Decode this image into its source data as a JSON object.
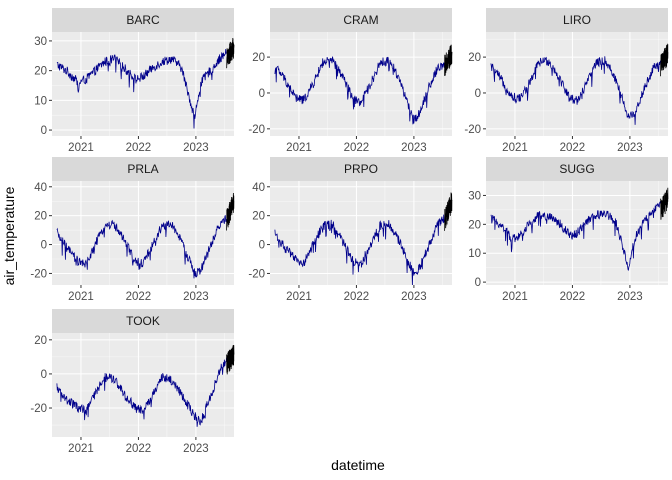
{
  "chart_data": {
    "type": "line",
    "layout": "facet_wrap",
    "xlabel": "datetime",
    "ylabel": "air_temperature",
    "x_range": [
      "2020-07-01",
      "2023-08-31"
    ],
    "x_ticks": [
      "2021",
      "2022",
      "2023"
    ],
    "grid": true,
    "colors": {
      "history": "#00008B",
      "forecast": "#000000",
      "panel_background": "#EBEBEB",
      "strip_background": "#D9D9D9",
      "gridline": "#FFFFFF"
    },
    "panels": [
      {
        "site": "BARC",
        "ylim": [
          -2,
          33
        ],
        "y_ticks": [
          0,
          10,
          20,
          30
        ],
        "series": [
          {
            "role": "history",
            "points": [
              [
                "2020-08-01",
                22
              ],
              [
                "2020-10-01",
                20
              ],
              [
                "2020-12-15",
                16
              ],
              [
                "2021-02-01",
                17
              ],
              [
                "2021-04-01",
                20
              ],
              [
                "2021-06-01",
                23
              ],
              [
                "2021-08-01",
                24
              ],
              [
                "2021-10-01",
                21
              ],
              [
                "2021-12-15",
                17
              ],
              [
                "2022-02-01",
                18
              ],
              [
                "2022-04-01",
                21
              ],
              [
                "2022-06-01",
                23
              ],
              [
                "2022-08-01",
                24
              ],
              [
                "2022-10-01",
                21
              ],
              [
                "2022-12-25",
                4
              ],
              [
                "2023-02-01",
                16
              ],
              [
                "2023-04-01",
                20
              ],
              [
                "2023-06-01",
                24
              ],
              [
                "2023-07-15",
                26
              ]
            ]
          },
          {
            "role": "forecast",
            "points": [
              [
                "2023-07-15",
                24
              ],
              [
                "2023-08-31",
                28
              ]
            ]
          }
        ]
      },
      {
        "site": "CRAM",
        "ylim": [
          -24,
          34
        ],
        "y_ticks": [
          -20,
          0,
          20
        ],
        "series": [
          {
            "role": "history",
            "points": [
              [
                "2020-08-01",
                15
              ],
              [
                "2020-10-01",
                8
              ],
              [
                "2020-12-15",
                -3
              ],
              [
                "2021-02-01",
                -4
              ],
              [
                "2021-04-01",
                5
              ],
              [
                "2021-06-01",
                17
              ],
              [
                "2021-08-01",
                18
              ],
              [
                "2021-10-01",
                10
              ],
              [
                "2021-12-15",
                -4
              ],
              [
                "2022-02-01",
                -5
              ],
              [
                "2022-04-01",
                5
              ],
              [
                "2022-06-01",
                17
              ],
              [
                "2022-08-01",
                18
              ],
              [
                "2022-10-01",
                8
              ],
              [
                "2022-12-25",
                -15
              ],
              [
                "2023-02-01",
                -12
              ],
              [
                "2023-04-01",
                2
              ],
              [
                "2023-06-01",
                14
              ],
              [
                "2023-07-15",
                16
              ]
            ]
          },
          {
            "role": "forecast",
            "points": [
              [
                "2023-07-15",
                15
              ],
              [
                "2023-08-31",
                22
              ]
            ]
          }
        ]
      },
      {
        "site": "LIRO",
        "ylim": [
          -24,
          34
        ],
        "y_ticks": [
          -20,
          0,
          20
        ],
        "series": [
          {
            "role": "history",
            "points": [
              [
                "2020-08-01",
                15
              ],
              [
                "2020-10-01",
                8
              ],
              [
                "2020-12-15",
                -2
              ],
              [
                "2021-02-01",
                -3
              ],
              [
                "2021-04-01",
                5
              ],
              [
                "2021-06-01",
                17
              ],
              [
                "2021-08-01",
                18
              ],
              [
                "2021-10-01",
                10
              ],
              [
                "2021-12-15",
                -3
              ],
              [
                "2022-02-01",
                -4
              ],
              [
                "2022-04-01",
                5
              ],
              [
                "2022-06-01",
                17
              ],
              [
                "2022-08-01",
                18
              ],
              [
                "2022-10-01",
                8
              ],
              [
                "2022-12-25",
                -14
              ],
              [
                "2023-02-01",
                -11
              ],
              [
                "2023-04-01",
                2
              ],
              [
                "2023-06-01",
                14
              ],
              [
                "2023-07-15",
                16
              ]
            ]
          },
          {
            "role": "forecast",
            "points": [
              [
                "2023-07-15",
                15
              ],
              [
                "2023-08-31",
                22
              ]
            ]
          }
        ]
      },
      {
        "site": "PRLA",
        "ylim": [
          -28,
          44
        ],
        "y_ticks": [
          -20,
          0,
          20,
          40
        ],
        "series": [
          {
            "role": "history",
            "points": [
              [
                "2020-08-01",
                8
              ],
              [
                "2020-10-01",
                -2
              ],
              [
                "2020-12-15",
                -12
              ],
              [
                "2021-02-01",
                -14
              ],
              [
                "2021-04-01",
                0
              ],
              [
                "2021-06-01",
                13
              ],
              [
                "2021-08-01",
                14
              ],
              [
                "2021-10-01",
                3
              ],
              [
                "2021-12-15",
                -12
              ],
              [
                "2022-02-01",
                -13
              ],
              [
                "2022-04-01",
                0
              ],
              [
                "2022-06-01",
                13
              ],
              [
                "2022-08-01",
                14
              ],
              [
                "2022-10-01",
                2
              ],
              [
                "2022-12-25",
                -20
              ],
              [
                "2023-02-01",
                -18
              ],
              [
                "2023-04-01",
                -2
              ],
              [
                "2023-06-01",
                14
              ],
              [
                "2023-07-15",
                18
              ]
            ]
          },
          {
            "role": "forecast",
            "points": [
              [
                "2023-07-15",
                17
              ],
              [
                "2023-08-31",
                30
              ]
            ]
          }
        ]
      },
      {
        "site": "PRPO",
        "ylim": [
          -28,
          44
        ],
        "y_ticks": [
          -20,
          0,
          20,
          40
        ],
        "series": [
          {
            "role": "history",
            "points": [
              [
                "2020-08-01",
                8
              ],
              [
                "2020-10-01",
                -2
              ],
              [
                "2020-12-15",
                -11
              ],
              [
                "2021-02-01",
                -13
              ],
              [
                "2021-04-01",
                0
              ],
              [
                "2021-06-01",
                13
              ],
              [
                "2021-08-01",
                14
              ],
              [
                "2021-10-01",
                3
              ],
              [
                "2021-12-15",
                -12
              ],
              [
                "2022-02-01",
                -13
              ],
              [
                "2022-04-01",
                0
              ],
              [
                "2022-06-01",
                13
              ],
              [
                "2022-08-01",
                14
              ],
              [
                "2022-10-01",
                2
              ],
              [
                "2022-12-25",
                -19
              ],
              [
                "2023-02-01",
                -17
              ],
              [
                "2023-04-01",
                -2
              ],
              [
                "2023-06-01",
                14
              ],
              [
                "2023-07-15",
                18
              ]
            ]
          },
          {
            "role": "forecast",
            "points": [
              [
                "2023-07-15",
                17
              ],
              [
                "2023-08-31",
                30
              ]
            ]
          }
        ]
      },
      {
        "site": "SUGG",
        "ylim": [
          -1,
          35
        ],
        "y_ticks": [
          0,
          10,
          20,
          30
        ],
        "series": [
          {
            "role": "history",
            "points": [
              [
                "2020-08-01",
                22
              ],
              [
                "2020-10-01",
                20
              ],
              [
                "2020-12-15",
                15
              ],
              [
                "2021-02-01",
                16
              ],
              [
                "2021-04-01",
                20
              ],
              [
                "2021-06-01",
                23
              ],
              [
                "2021-08-01",
                23
              ],
              [
                "2021-10-01",
                21
              ],
              [
                "2021-12-15",
                16
              ],
              [
                "2022-02-01",
                17
              ],
              [
                "2022-04-01",
                21
              ],
              [
                "2022-06-01",
                23
              ],
              [
                "2022-08-01",
                24
              ],
              [
                "2022-10-01",
                21
              ],
              [
                "2022-12-25",
                5
              ],
              [
                "2023-02-01",
                15
              ],
              [
                "2023-04-01",
                21
              ],
              [
                "2023-06-01",
                25
              ],
              [
                "2023-07-15",
                27
              ]
            ]
          },
          {
            "role": "forecast",
            "points": [
              [
                "2023-07-15",
                25
              ],
              [
                "2023-08-31",
                29
              ]
            ]
          }
        ]
      },
      {
        "site": "TOOK",
        "ylim": [
          -37,
          24
        ],
        "y_ticks": [
          -20,
          0,
          20
        ],
        "series": [
          {
            "role": "history",
            "points": [
              [
                "2020-08-01",
                -8
              ],
              [
                "2020-10-01",
                -15
              ],
              [
                "2020-12-15",
                -20
              ],
              [
                "2021-02-01",
                -22
              ],
              [
                "2021-04-01",
                -12
              ],
              [
                "2021-06-01",
                -2
              ],
              [
                "2021-08-01",
                -3
              ],
              [
                "2021-10-01",
                -12
              ],
              [
                "2021-12-15",
                -20
              ],
              [
                "2022-02-01",
                -22
              ],
              [
                "2022-04-01",
                -12
              ],
              [
                "2022-06-01",
                -2
              ],
              [
                "2022-08-01",
                -4
              ],
              [
                "2022-10-01",
                -12
              ],
              [
                "2022-12-25",
                -25
              ],
              [
                "2023-02-01",
                -28
              ],
              [
                "2023-04-01",
                -14
              ],
              [
                "2023-06-01",
                2
              ],
              [
                "2023-07-15",
                8
              ]
            ]
          },
          {
            "role": "forecast",
            "points": [
              [
                "2023-07-15",
                5
              ],
              [
                "2023-08-31",
                12
              ]
            ]
          }
        ]
      }
    ]
  }
}
